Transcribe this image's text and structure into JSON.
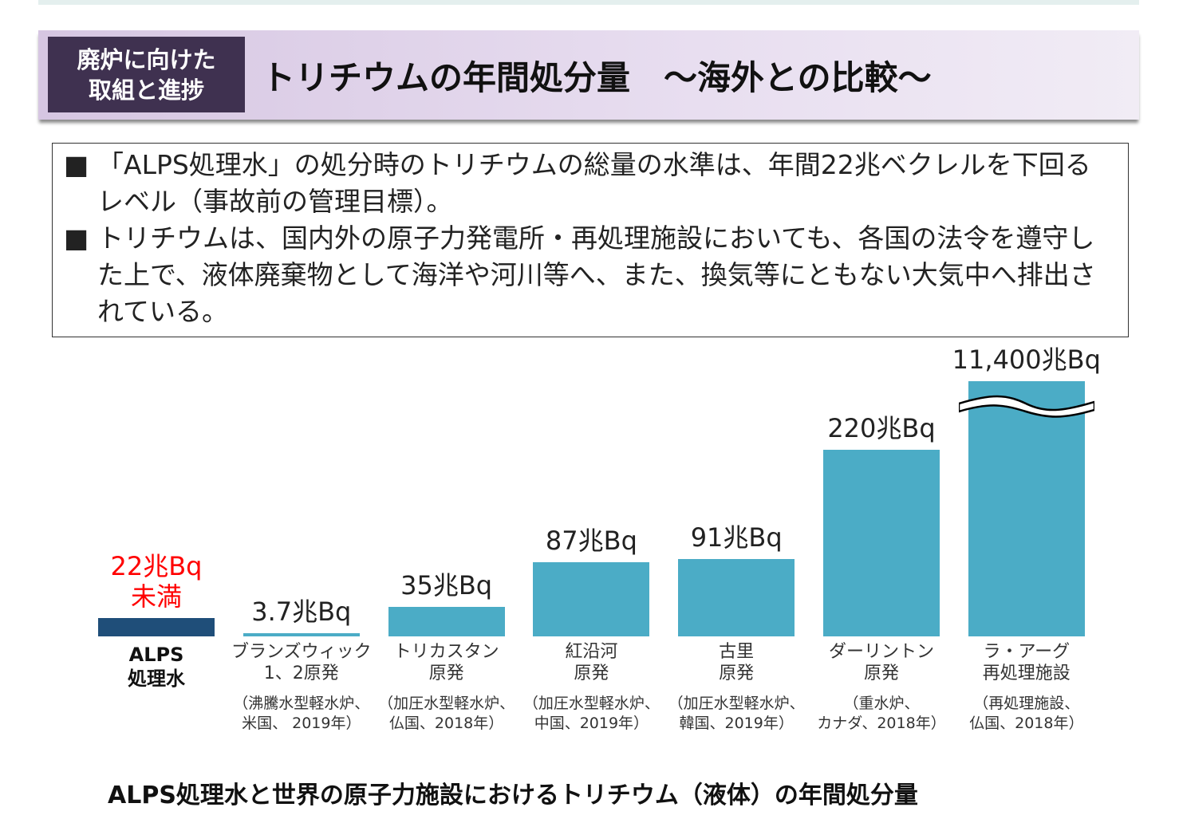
{
  "header": {
    "tag": [
      "廃炉に向けた",
      "取組と進捗"
    ],
    "title": "トリチウムの年間処分量　～海外との比較～"
  },
  "bullets": [
    {
      "marker": "■",
      "text": "「ALPS処理水」の処分時のトリチウムの総量の水準は、年間22兆ベクレルを下回るレベル（事故前の管理目標）。"
    },
    {
      "marker": "■",
      "text": "トリチウムは、国内外の原子力発電所・再処理施設においても、各国の法令を遵守した上で、液体廃棄物として海洋や河川等へ、また、換気等にともない大気中へ排出されている。"
    }
  ],
  "chart_data": {
    "type": "bar",
    "title": "",
    "unit": "兆Bq",
    "categories": [
      "ALPS処理水",
      "ブランズウィック1、2原発",
      "トリカスタン原発",
      "紅沿河原発",
      "古里原発",
      "ダーリントン原発",
      "ラ・アーグ再処理施設"
    ],
    "values": [
      22,
      3.7,
      35,
      87,
      91,
      220,
      11400
    ],
    "value_labels": [
      "22兆Bq\n未満",
      "3.7兆Bq",
      "35兆Bq",
      "87兆Bq",
      "91兆Bq",
      "220兆Bq",
      "11,400兆Bq"
    ],
    "name_labels": [
      "ALPS\n処理水",
      "ブランズウィック\n1、2原発",
      "トリカスタン\n原発",
      "紅沿河\n原発",
      "古里\n原発",
      "ダーリントン\n原発",
      "ラ・アーグ\n再処理施設"
    ],
    "notes": [
      "",
      "（沸騰水型軽水炉、\n米国、 2019年）",
      "（加圧水型軽水炉、\n仏国、2018年）",
      "（加圧水型軽水炉、\n中国、2019年）",
      "（加圧水型軽水炉、\n韓国、2019年）",
      "（重水炉、\nカナダ、2018年）",
      "（再処理施設、\n仏国、2018年）"
    ],
    "broken_axis_bar": "ラ・アーグ再処理施設",
    "colors": {
      "alps": "#1f4e79",
      "others": "#4bacc6",
      "alps_label": "#ff0000"
    },
    "caption": "ALPS処理水と世界の原子力施設におけるトリチウム（液体）の年間処分量"
  }
}
